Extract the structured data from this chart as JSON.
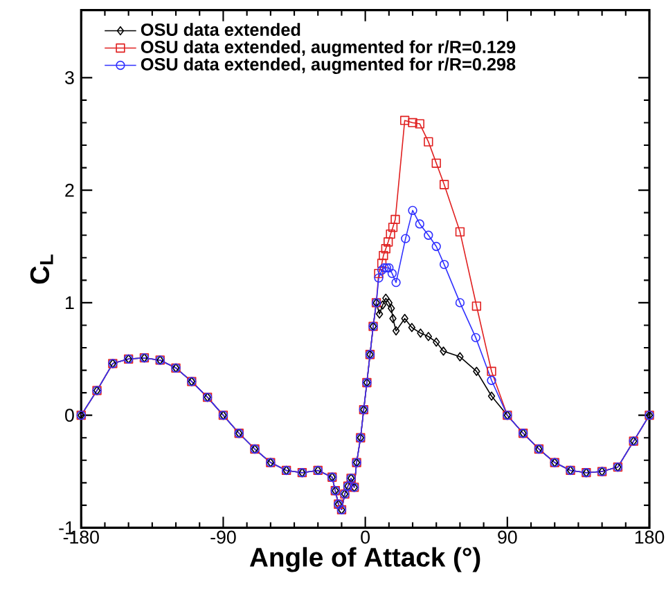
{
  "chart_data": {
    "type": "line",
    "xlabel": "Angle of Attack (°)",
    "ylabel": "C$_{L}$",
    "xlim": [
      -180,
      180
    ],
    "ylim": [
      -1,
      3.6
    ],
    "xticks": [
      -180,
      -90,
      0,
      90,
      180
    ],
    "yticks": [
      -1,
      0,
      1,
      2,
      3
    ],
    "grid": false,
    "legend": "top left",
    "line_style": "solid",
    "series": [
      {
        "name": "OSU data extended",
        "color": "#000000",
        "marker": "diamond",
        "x": [
          -180,
          -170,
          -160,
          -150,
          -140,
          -130,
          -120,
          -110,
          -100,
          -90,
          -80,
          -70,
          -60,
          -50,
          -40,
          -30,
          -21,
          -19,
          -17,
          -15,
          -13,
          -11,
          -9,
          -7,
          -5.5,
          -3,
          -1,
          1,
          3,
          5,
          7,
          9,
          11,
          13,
          15,
          16.5,
          17.5,
          19.5,
          25,
          29.5,
          35,
          40,
          45,
          49.5,
          60,
          70.5,
          80,
          90,
          100,
          110,
          120,
          130,
          140,
          150,
          160,
          170,
          180
        ],
        "values": [
          0,
          0.22,
          0.46,
          0.5,
          0.51,
          0.49,
          0.42,
          0.3,
          0.16,
          0,
          -0.16,
          -0.3,
          -0.42,
          -0.49,
          -0.51,
          -0.49,
          -0.55,
          -0.67,
          -0.79,
          -0.84,
          -0.7,
          -0.63,
          -0.56,
          -0.64,
          -0.42,
          -0.2,
          0.05,
          0.29,
          0.54,
          0.79,
          1.0,
          0.9,
          0.98,
          1.04,
          1.0,
          0.95,
          0.86,
          0.75,
          0.86,
          0.78,
          0.73,
          0.7,
          0.65,
          0.57,
          0.52,
          0.39,
          0.17,
          0,
          -0.16,
          -0.3,
          -0.42,
          -0.49,
          -0.51,
          -0.5,
          -0.46,
          -0.23,
          0
        ]
      },
      {
        "name": "OSU data extended, augmented for r/R=0.129",
        "color": "#e02020",
        "marker": "square",
        "x": [
          -180,
          -170,
          -160,
          -150,
          -140,
          -130,
          -120,
          -110,
          -100,
          -90,
          -80,
          -70,
          -60,
          -50,
          -40,
          -30,
          -21,
          -19,
          -17,
          -15,
          -13,
          -11,
          -9,
          -7,
          -5.5,
          -3,
          -1,
          1,
          3,
          5,
          7,
          8.5,
          10.5,
          11.5,
          13,
          14.5,
          16,
          17.5,
          19,
          25,
          30,
          34.5,
          40,
          45,
          50,
          60,
          70.5,
          80,
          90,
          100,
          110,
          120,
          130,
          140,
          150,
          160,
          170,
          180
        ],
        "values": [
          0,
          0.22,
          0.46,
          0.5,
          0.51,
          0.49,
          0.42,
          0.3,
          0.16,
          0,
          -0.16,
          -0.3,
          -0.42,
          -0.49,
          -0.51,
          -0.49,
          -0.55,
          -0.67,
          -0.79,
          -0.84,
          -0.7,
          -0.63,
          -0.56,
          -0.64,
          -0.42,
          -0.2,
          0.05,
          0.29,
          0.54,
          0.79,
          1.0,
          1.26,
          1.35,
          1.42,
          1.48,
          1.54,
          1.61,
          1.67,
          1.74,
          2.62,
          2.6,
          2.59,
          2.43,
          2.24,
          2.05,
          1.63,
          0.97,
          0.39,
          0,
          -0.16,
          -0.3,
          -0.42,
          -0.49,
          -0.51,
          -0.5,
          -0.46,
          -0.23,
          0
        ]
      },
      {
        "name": "OSU data extended, augmented for r/R=0.298",
        "color": "#3030ff",
        "marker": "circle",
        "x": [
          -180,
          -170,
          -160,
          -150,
          -140,
          -130,
          -120,
          -110,
          -100,
          -90,
          -80,
          -70,
          -60,
          -50,
          -40,
          -30,
          -21,
          -19,
          -17,
          -15,
          -13,
          -11,
          -9,
          -7,
          -5.5,
          -3,
          -1,
          1,
          3,
          5,
          7,
          8.5,
          10.5,
          12,
          13.5,
          15,
          17,
          19.5,
          25.5,
          30,
          34.5,
          40,
          45,
          50,
          60,
          70,
          80,
          90,
          100,
          110,
          120,
          130,
          140,
          150,
          160,
          170,
          180
        ],
        "values": [
          0,
          0.22,
          0.46,
          0.5,
          0.51,
          0.49,
          0.42,
          0.3,
          0.16,
          0,
          -0.16,
          -0.3,
          -0.42,
          -0.49,
          -0.51,
          -0.49,
          -0.55,
          -0.67,
          -0.79,
          -0.84,
          -0.7,
          -0.63,
          -0.56,
          -0.64,
          -0.42,
          -0.2,
          0.05,
          0.29,
          0.54,
          0.79,
          1.0,
          1.22,
          1.29,
          1.31,
          1.31,
          1.31,
          1.26,
          1.18,
          1.57,
          1.82,
          1.7,
          1.6,
          1.5,
          1.34,
          1.0,
          0.69,
          0.31,
          0,
          -0.16,
          -0.3,
          -0.42,
          -0.49,
          -0.51,
          -0.5,
          -0.46,
          -0.23,
          0
        ]
      }
    ]
  }
}
